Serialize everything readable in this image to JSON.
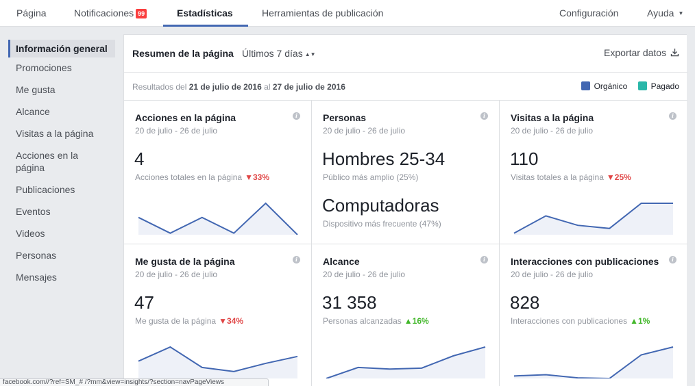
{
  "nav": {
    "tabs": [
      {
        "label": "Página"
      },
      {
        "label": "Notificaciones",
        "badge": "99"
      },
      {
        "label": "Estadísticas"
      },
      {
        "label": "Herramientas de publicación"
      }
    ],
    "right": [
      {
        "label": "Configuración"
      },
      {
        "label": "Ayuda"
      }
    ],
    "active_tab": "Estadísticas"
  },
  "sidebar": {
    "items": [
      {
        "label": "Información general"
      },
      {
        "label": "Promociones"
      },
      {
        "label": "Me gusta"
      },
      {
        "label": "Alcance"
      },
      {
        "label": "Visitas a la página"
      },
      {
        "label": "Acciones en la página"
      },
      {
        "label": "Publicaciones"
      },
      {
        "label": "Eventos"
      },
      {
        "label": "Videos"
      },
      {
        "label": "Personas"
      },
      {
        "label": "Mensajes"
      }
    ],
    "active_item": "Información general"
  },
  "header": {
    "title": "Resumen de la página",
    "period": "Últimos 7 días",
    "export": "Exportar datos"
  },
  "range": {
    "prefix": "Resultados del",
    "start": "21 de julio de 2016",
    "mid": "al",
    "end": "27 de julio de 2016"
  },
  "legend": {
    "organic": "Orgánico",
    "paid": "Pagado",
    "organic_color": "#4267b2",
    "paid_color": "#2ab7a9"
  },
  "cards": [
    {
      "title": "Acciones en la página",
      "date": "20 de julio - 26 de julio",
      "value": "4",
      "desc": "Acciones totales en la página",
      "change": "33%",
      "dir": "down",
      "spark": [
        0.55,
        0.05,
        0.55,
        0.05,
        1.0,
        0.0
      ]
    },
    {
      "title": "Personas",
      "date": "20 de julio - 26 de julio",
      "value": "Hombres 25-34",
      "desc": "Público más amplio (25%)",
      "value2": "Computadoras",
      "desc2": "Dispositivo más frecuente (47%)"
    },
    {
      "title": "Visitas a la página",
      "date": "20 de julio - 26 de julio",
      "value": "110",
      "desc": "Visitas totales a la página",
      "change": "25%",
      "dir": "down",
      "spark": [
        0.05,
        0.6,
        0.3,
        0.2,
        1.0,
        1.0
      ]
    },
    {
      "title": "Me gusta de la página",
      "date": "20 de julio - 26 de julio",
      "value": "47",
      "desc": "Me gusta de la página",
      "change": "34%",
      "dir": "down",
      "spark": [
        0.55,
        1.0,
        0.35,
        0.22,
        0.48,
        0.7
      ]
    },
    {
      "title": "Alcance",
      "date": "20 de julio - 26 de julio",
      "value": "31 358",
      "desc": "Personas alcanzadas",
      "change": "16%",
      "dir": "up",
      "spark": [
        0.0,
        0.35,
        0.3,
        0.33,
        0.72,
        1.0
      ]
    },
    {
      "title": "Interacciones con publicaciones",
      "date": "20 de julio - 26 de julio",
      "value": "828",
      "desc": "Interacciones con publicaciones",
      "change": "1%",
      "dir": "up",
      "spark": [
        0.08,
        0.12,
        0.02,
        0.0,
        0.75,
        1.0
      ]
    }
  ],
  "status": {
    "text": "facebook.com//?ref=SM_# /?mm&view=insights/?section=navPageViews"
  }
}
